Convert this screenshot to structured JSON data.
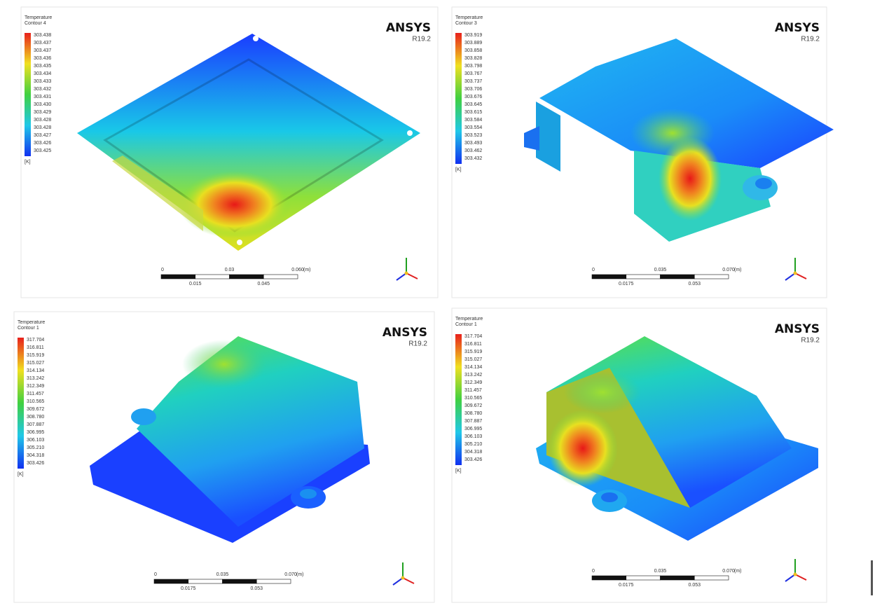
{
  "panels": [
    {
      "legend_title": "Temperature",
      "contour": "Contour 4",
      "legend_values": [
        "303.438",
        "303.437",
        "303.437",
        "303.436",
        "303.435",
        "303.434",
        "303.433",
        "303.432",
        "303.431",
        "303.430",
        "303.429",
        "303.428",
        "303.428",
        "303.427",
        "303.426",
        "303.425"
      ],
      "unit": "[K]",
      "brand": "ANSYS",
      "version": "R19.2",
      "scale_top": [
        "0",
        "0.03",
        "0.060",
        "(m)"
      ],
      "scale_bottom": [
        "0.015",
        "0.045"
      ]
    },
    {
      "legend_title": "Temperature",
      "contour": "Contour 3",
      "legend_values": [
        "303.919",
        "303.889",
        "303.858",
        "303.828",
        "303.798",
        "303.767",
        "303.737",
        "303.706",
        "303.676",
        "303.645",
        "303.615",
        "303.584",
        "303.554",
        "303.523",
        "303.493",
        "303.462",
        "303.432"
      ],
      "unit": "[K]",
      "brand": "ANSYS",
      "version": "R19.2",
      "scale_top": [
        "0",
        "0.035",
        "0.070",
        "(m)"
      ],
      "scale_bottom": [
        "0.0175",
        "0.053"
      ]
    },
    {
      "legend_title": "Temperature",
      "contour": "Contour 1",
      "legend_values": [
        "317.704",
        "316.811",
        "315.919",
        "315.027",
        "314.134",
        "313.242",
        "312.349",
        "311.457",
        "310.565",
        "309.672",
        "308.780",
        "307.887",
        "306.995",
        "306.103",
        "305.210",
        "304.318",
        "303.426"
      ],
      "unit": "[K]",
      "brand": "ANSYS",
      "version": "R19.2",
      "scale_top": [
        "0",
        "0.035",
        "0.070",
        "(m)"
      ],
      "scale_bottom": [
        "0.0175",
        "0.053"
      ]
    },
    {
      "legend_title": "Temperature",
      "contour": "Contour 1",
      "legend_values": [
        "317.704",
        "316.811",
        "315.919",
        "315.027",
        "314.134",
        "313.242",
        "312.349",
        "311.457",
        "310.565",
        "309.672",
        "308.780",
        "307.887",
        "306.995",
        "306.103",
        "305.210",
        "304.318",
        "303.426"
      ],
      "unit": "[K]",
      "brand": "ANSYS",
      "version": "R19.2",
      "scale_top": [
        "0",
        "0.035",
        "0.070",
        "(m)"
      ],
      "scale_bottom": [
        "0.0175",
        "0.053"
      ]
    }
  ]
}
